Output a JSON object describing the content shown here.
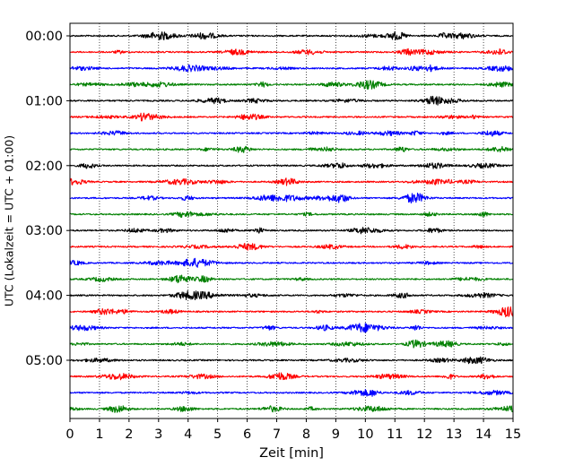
{
  "chart_data": {
    "type": "line",
    "title": "",
    "xlabel": "Zeit  [min]",
    "ylabel": "UTC (Lokalzeit = UTC + 01:00)",
    "xlim": [
      0,
      15
    ],
    "x_ticks": [
      "0",
      "1",
      "2",
      "3",
      "4",
      "5",
      "6",
      "7",
      "8",
      "9",
      "10",
      "11",
      "12",
      "13",
      "14",
      "15"
    ],
    "y_tick_labels": [
      "00:00",
      "01:00",
      "02:00",
      "03:00",
      "04:00",
      "05:00"
    ],
    "grid": "vertical-dotted",
    "trace_interval_minutes": 15,
    "trace_count": 24,
    "trace_colors": [
      "#000000",
      "#ff0000",
      "#0000ff",
      "#008000"
    ],
    "series_description": "helicorder seismogram: one 15-minute trace per row, colors cycling black/red/blue/green"
  }
}
